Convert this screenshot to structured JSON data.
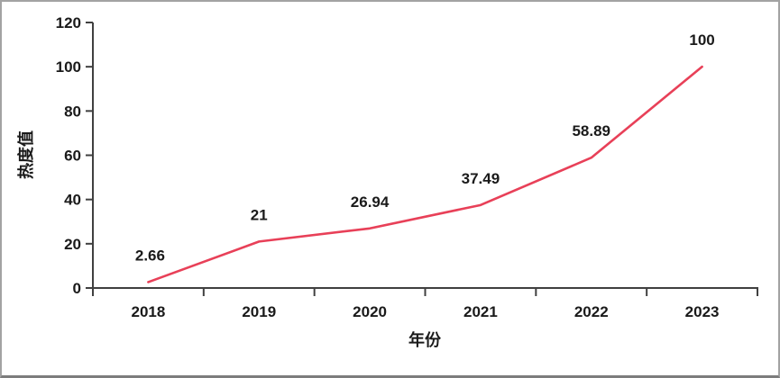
{
  "chart_data": {
    "type": "line",
    "title": "",
    "xlabel": "年份",
    "ylabel": "热度值",
    "categories": [
      "2018",
      "2019",
      "2020",
      "2021",
      "2022",
      "2023"
    ],
    "series": [
      {
        "name": "热度值",
        "values": [
          2.66,
          21,
          26.94,
          37.49,
          58.89,
          100
        ]
      }
    ],
    "point_labels": [
      "2.66",
      "21",
      "26.94",
      "37.49",
      "58.89",
      "100"
    ],
    "ylim": [
      0,
      120
    ],
    "yticks": [
      0,
      20,
      40,
      60,
      80,
      100,
      120
    ],
    "grid": false,
    "legend": "none",
    "line_color": "#e84058",
    "axis_color": "#404040",
    "text_color": "#1a1a1a"
  }
}
